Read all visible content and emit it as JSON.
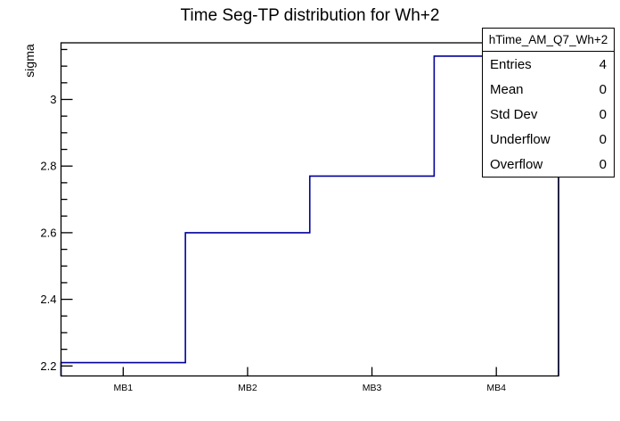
{
  "chart_data": {
    "type": "line",
    "variant": "step-histogram",
    "title": "Time Seg-TP distribution for Wh+2",
    "xlabel": "",
    "ylabel": "sigma",
    "categories": [
      "MB1",
      "MB2",
      "MB3",
      "MB4"
    ],
    "values": [
      2.21,
      2.6,
      2.77,
      3.13
    ],
    "ylim": [
      2.17,
      3.17
    ],
    "yticks": {
      "major": [
        2.2,
        2.4,
        2.6,
        2.8,
        3.0
      ],
      "labels": [
        "2.2",
        "2.4",
        "2.6",
        "2.8",
        "3"
      ],
      "minor_step": 0.05
    },
    "grid": false,
    "legend_position": "none",
    "line_color": "#000099",
    "frame_color": "#000000",
    "background_color": "#ffffff"
  },
  "stats_box": {
    "title": "hTime_AM_Q7_Wh+2",
    "rows": [
      {
        "label": "Entries",
        "value": "4"
      },
      {
        "label": "Mean",
        "value": "0"
      },
      {
        "label": "Std Dev",
        "value": "0"
      },
      {
        "label": "Underflow",
        "value": "0"
      },
      {
        "label": "Overflow",
        "value": "0"
      }
    ]
  }
}
